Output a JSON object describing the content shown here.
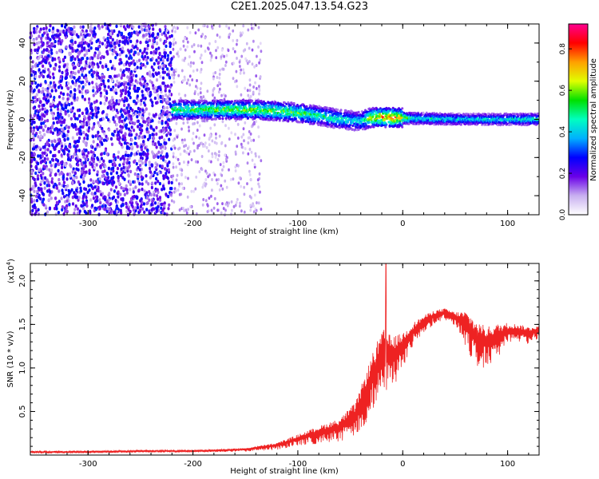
{
  "title": "C2E1.2025.047.13.54.G23",
  "chart_data": [
    {
      "type": "heatmap",
      "name": "spectrogram",
      "xlabel": "Height of straight line (km)",
      "ylabel": "Frequency (Hz)",
      "xlim": [
        -355,
        130
      ],
      "ylim": [
        -50,
        50
      ],
      "x_ticks": [
        -300,
        -200,
        -100,
        0,
        100
      ],
      "x_tick_labels": [
        "-300",
        "-200",
        "-100",
        "0",
        "100"
      ],
      "y_ticks": [
        -40,
        -20,
        0,
        20,
        40
      ],
      "y_tick_labels": [
        "-40",
        "-20",
        "0",
        "20",
        "40"
      ],
      "colorbar": {
        "label": "Normalized spectral amplitude",
        "range": [
          0,
          0.92
        ],
        "ticks": [
          0.0,
          0.2,
          0.4,
          0.6,
          0.8
        ],
        "tick_labels": [
          "0.0",
          "0.2",
          "0.4",
          "0.6",
          "0.8"
        ],
        "colors": [
          "#ffffff",
          "#c8b0f0",
          "#6a00e8",
          "#0000ff",
          "#00b0ff",
          "#00ffc0",
          "#00e000",
          "#e0ff00",
          "#ffa000",
          "#ff0000",
          "#ff0090"
        ]
      },
      "signal_track": [
        {
          "x": -220,
          "freq": 5,
          "amp": 0.55
        },
        {
          "x": -180,
          "freq": 5,
          "amp": 0.6
        },
        {
          "x": -140,
          "freq": 5,
          "amp": 0.62
        },
        {
          "x": -110,
          "freq": 4,
          "amp": 0.6
        },
        {
          "x": -80,
          "freq": 2,
          "amp": 0.55
        },
        {
          "x": -60,
          "freq": 0,
          "amp": 0.5
        },
        {
          "x": -40,
          "freq": -1,
          "amp": 0.45
        },
        {
          "x": -30,
          "freq": 1,
          "amp": 0.7
        },
        {
          "x": -10,
          "freq": 1,
          "amp": 0.85
        },
        {
          "x": 10,
          "freq": 0.5,
          "amp": 0.5
        },
        {
          "x": 60,
          "freq": 0,
          "amp": 0.45
        },
        {
          "x": 130,
          "freq": 0,
          "amp": 0.5
        }
      ]
    },
    {
      "type": "line",
      "name": "snr",
      "xlabel": "Height of straight line (km)",
      "ylabel": "SNR (10 * v/v)",
      "y_multiplier_label": "(x10",
      "y_multiplier_exp": "4",
      "y_multiplier_close": ")",
      "xlim": [
        -355,
        130
      ],
      "ylim": [
        0,
        2.2
      ],
      "x_ticks": [
        -300,
        -200,
        -100,
        0,
        100
      ],
      "x_tick_labels": [
        "-300",
        "-200",
        "-100",
        "0",
        "100"
      ],
      "y_ticks": [
        0.5,
        1.0,
        1.5,
        2.0
      ],
      "y_tick_labels": [
        "0.5",
        "1.0",
        "1.5",
        "2.0"
      ],
      "color": "#ff0000",
      "series": [
        {
          "name": "SNR",
          "x": [
            -355,
            -300,
            -250,
            -200,
            -150,
            -120,
            -100,
            -80,
            -60,
            -45,
            -35,
            -25,
            -18,
            -10,
            0,
            10,
            20,
            30,
            40,
            50,
            60,
            70,
            80,
            90,
            100,
            110,
            120,
            130
          ],
          "y": [
            0.04,
            0.04,
            0.05,
            0.05,
            0.07,
            0.12,
            0.2,
            0.28,
            0.35,
            0.5,
            0.8,
            1.1,
            1.25,
            1.2,
            1.3,
            1.45,
            1.55,
            1.62,
            1.65,
            1.6,
            1.55,
            1.4,
            1.35,
            1.4,
            1.45,
            1.45,
            1.42,
            1.45
          ],
          "noise": [
            0.02,
            0.02,
            0.02,
            0.02,
            0.03,
            0.06,
            0.1,
            0.15,
            0.2,
            0.3,
            0.45,
            0.55,
            0.55,
            0.45,
            0.3,
            0.2,
            0.15,
            0.12,
            0.1,
            0.12,
            0.3,
            0.4,
            0.35,
            0.3,
            0.2,
            0.15,
            0.15,
            0.12
          ]
        }
      ],
      "peak": {
        "x": -16,
        "y": 2.2
      }
    }
  ]
}
